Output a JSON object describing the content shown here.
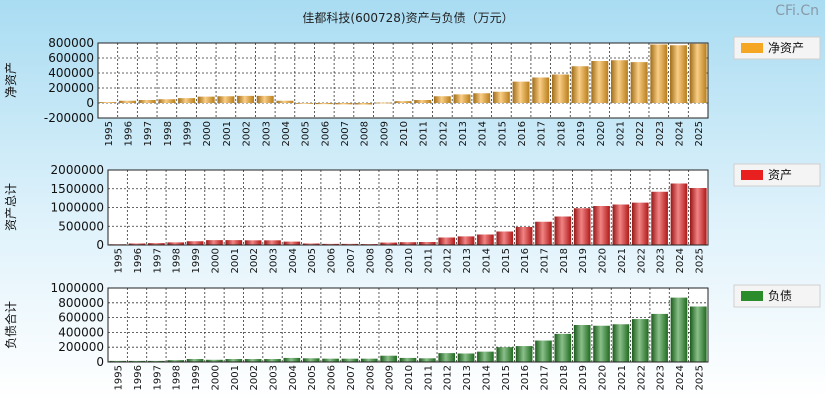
{
  "title": "佳都科技(600728)资产与负债（万元）",
  "watermark": "CFi.Cn",
  "years": [
    "1995",
    "1996",
    "1997",
    "1998",
    "1999",
    "2000",
    "2001",
    "2002",
    "2003",
    "2004",
    "2005",
    "2006",
    "2007",
    "2008",
    "2009",
    "2010",
    "2011",
    "2012",
    "2013",
    "2014",
    "2015",
    "2016",
    "2017",
    "2018",
    "2019",
    "2020",
    "2021",
    "2022",
    "2023",
    "2024",
    "2025"
  ],
  "chart_data": [
    {
      "type": "bar",
      "ylabel": "净资产",
      "legend": "净资产",
      "color": "#f5a623",
      "ylim": [
        -200000,
        800000
      ],
      "ticks": [
        800000,
        600000,
        400000,
        200000,
        0,
        -200000
      ],
      "categories": [
        "1995",
        "1996",
        "1997",
        "1998",
        "1999",
        "2000",
        "2001",
        "2002",
        "2003",
        "2004",
        "2005",
        "2006",
        "2007",
        "2008",
        "2009",
        "2010",
        "2011",
        "2012",
        "2013",
        "2014",
        "2015",
        "2016",
        "2017",
        "2018",
        "2019",
        "2020",
        "2021",
        "2022",
        "2023",
        "2024",
        "2025"
      ],
      "values": [
        12000,
        30000,
        40000,
        50000,
        65000,
        85000,
        90000,
        95000,
        95000,
        30000,
        -8000,
        -15000,
        -18000,
        -20000,
        5000,
        25000,
        40000,
        90000,
        115000,
        130000,
        150000,
        285000,
        340000,
        380000,
        490000,
        560000,
        570000,
        545000,
        780000,
        770000,
        790000
      ]
    },
    {
      "type": "bar",
      "ylabel": "资产总计",
      "legend": "资产",
      "color": "#e82020",
      "ylim": [
        0,
        2000000
      ],
      "ticks": [
        2000000,
        1500000,
        1000000,
        500000,
        0
      ],
      "categories": [
        "1995",
        "1996",
        "1997",
        "1998",
        "1999",
        "2000",
        "2001",
        "2002",
        "2003",
        "2004",
        "2005",
        "2006",
        "2007",
        "2008",
        "2009",
        "2010",
        "2011",
        "2012",
        "2013",
        "2014",
        "2015",
        "2016",
        "2017",
        "2018",
        "2019",
        "2020",
        "2021",
        "2022",
        "2023",
        "2024",
        "2025"
      ],
      "values": [
        20000,
        40000,
        50000,
        70000,
        100000,
        130000,
        130000,
        125000,
        125000,
        90000,
        40000,
        30000,
        30000,
        25000,
        65000,
        75000,
        80000,
        200000,
        230000,
        280000,
        360000,
        480000,
        620000,
        760000,
        980000,
        1040000,
        1080000,
        1130000,
        1420000,
        1640000,
        1520000
      ]
    },
    {
      "type": "bar",
      "ylabel": "负债合计",
      "legend": "负债",
      "color": "#2a8c2a",
      "ylim": [
        0,
        1000000
      ],
      "ticks": [
        1000000,
        800000,
        600000,
        400000,
        200000,
        0
      ],
      "categories": [
        "1995",
        "1996",
        "1997",
        "1998",
        "1999",
        "2000",
        "2001",
        "2002",
        "2003",
        "2004",
        "2005",
        "2006",
        "2007",
        "2008",
        "2009",
        "2010",
        "2011",
        "2012",
        "2013",
        "2014",
        "2015",
        "2016",
        "2017",
        "2018",
        "2019",
        "2020",
        "2021",
        "2022",
        "2023",
        "2024",
        "2025"
      ],
      "values": [
        15000,
        15000,
        15000,
        25000,
        40000,
        30000,
        40000,
        40000,
        40000,
        55000,
        50000,
        45000,
        45000,
        45000,
        85000,
        55000,
        50000,
        120000,
        115000,
        140000,
        200000,
        215000,
        290000,
        380000,
        500000,
        490000,
        510000,
        580000,
        650000,
        870000,
        750000
      ]
    }
  ]
}
